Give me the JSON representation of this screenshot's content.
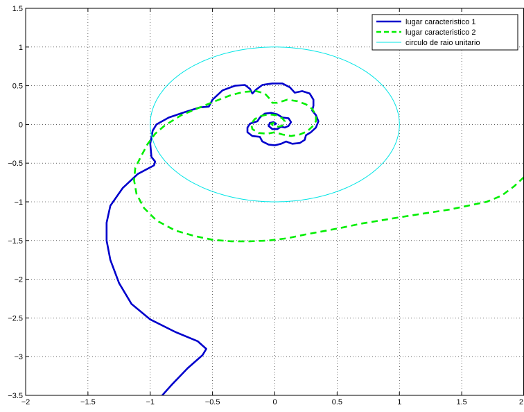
{
  "chart_data": {
    "type": "line",
    "title": "",
    "xlabel": "",
    "ylabel": "",
    "xlim": [
      -2,
      2
    ],
    "ylim": [
      -3.5,
      1.5
    ],
    "xticks": [
      -2,
      -1.5,
      -1,
      -0.5,
      0,
      0.5,
      1,
      1.5,
      2
    ],
    "xtick_labels": [
      "−2",
      "−1.5",
      "−1",
      "−0.5",
      "0",
      "0.5",
      "1",
      "1.5",
      "2"
    ],
    "yticks": [
      1.5,
      1,
      0.5,
      0,
      -0.5,
      -1,
      -1.5,
      -2,
      -2.5,
      -3,
      -3.5
    ],
    "ytick_labels": [
      "1.5",
      "1",
      "0.5",
      "0",
      "−0.5",
      "−1",
      "−1.5",
      "−2",
      "−2.5",
      "−3",
      "−3.5"
    ],
    "grid": true,
    "legend_position": "top-right",
    "series": [
      {
        "name": "lugar caracteristico 1",
        "color": "#0000CC",
        "style": "solid",
        "points": [
          [
            -0.92,
            -3.53
          ],
          [
            -0.82,
            -3.35
          ],
          [
            -0.7,
            -3.15
          ],
          [
            -0.58,
            -2.98
          ],
          [
            -0.55,
            -2.9
          ],
          [
            -0.62,
            -2.8
          ],
          [
            -0.8,
            -2.68
          ],
          [
            -1.0,
            -2.52
          ],
          [
            -1.15,
            -2.32
          ],
          [
            -1.25,
            -2.05
          ],
          [
            -1.32,
            -1.75
          ],
          [
            -1.35,
            -1.5
          ],
          [
            -1.35,
            -1.27
          ],
          [
            -1.32,
            -1.05
          ],
          [
            -1.22,
            -0.82
          ],
          [
            -1.1,
            -0.64
          ],
          [
            -0.97,
            -0.53
          ],
          [
            -0.96,
            -0.48
          ],
          [
            -0.99,
            -0.42
          ],
          [
            -1.0,
            -0.25
          ],
          [
            -0.98,
            -0.08
          ],
          [
            -0.95,
            0.0
          ],
          [
            -0.85,
            0.09
          ],
          [
            -0.72,
            0.16
          ],
          [
            -0.6,
            0.22
          ],
          [
            -0.53,
            0.23
          ],
          [
            -0.5,
            0.32
          ],
          [
            -0.42,
            0.44
          ],
          [
            -0.32,
            0.5
          ],
          [
            -0.24,
            0.51
          ],
          [
            -0.2,
            0.46
          ],
          [
            -0.18,
            0.4
          ],
          [
            -0.15,
            0.45
          ],
          [
            -0.1,
            0.51
          ],
          [
            -0.02,
            0.53
          ],
          [
            0.06,
            0.53
          ],
          [
            0.12,
            0.48
          ],
          [
            0.16,
            0.41
          ],
          [
            0.22,
            0.43
          ],
          [
            0.28,
            0.4
          ],
          [
            0.31,
            0.32
          ],
          [
            0.31,
            0.24
          ],
          [
            0.3,
            0.18
          ],
          [
            0.33,
            0.12
          ],
          [
            0.35,
            0.04
          ],
          [
            0.33,
            -0.04
          ],
          [
            0.29,
            -0.1
          ],
          [
            0.25,
            -0.14
          ],
          [
            0.24,
            -0.2
          ],
          [
            0.2,
            -0.24
          ],
          [
            0.14,
            -0.25
          ],
          [
            0.09,
            -0.22
          ],
          [
            0.05,
            -0.25
          ],
          [
            0.0,
            -0.27
          ],
          [
            -0.05,
            -0.26
          ],
          [
            -0.1,
            -0.22
          ],
          [
            -0.12,
            -0.16
          ],
          [
            -0.18,
            -0.15
          ],
          [
            -0.22,
            -0.1
          ],
          [
            -0.22,
            -0.04
          ],
          [
            -0.2,
            0.01
          ],
          [
            -0.14,
            0.04
          ],
          [
            -0.12,
            0.09
          ],
          [
            -0.08,
            0.14
          ],
          [
            -0.03,
            0.15
          ],
          [
            0.02,
            0.13
          ],
          [
            0.06,
            0.09
          ],
          [
            0.11,
            0.08
          ],
          [
            0.13,
            0.03
          ],
          [
            0.11,
            -0.02
          ],
          [
            0.08,
            -0.04
          ],
          [
            0.05,
            -0.03
          ],
          [
            0.02,
            -0.06
          ],
          [
            -0.02,
            -0.06
          ],
          [
            -0.05,
            -0.02
          ],
          [
            -0.04,
            0.02
          ],
          [
            -0.01,
            0.03
          ],
          [
            0.01,
            0.01
          ],
          [
            0.0,
            0.0
          ]
        ]
      },
      {
        "name": "lugar caracteristico 2",
        "color": "#00EE00",
        "style": "dashed",
        "points": [
          [
            2.0,
            -0.68
          ],
          [
            1.92,
            -0.8
          ],
          [
            1.82,
            -0.92
          ],
          [
            1.7,
            -1.0
          ],
          [
            1.55,
            -1.05
          ],
          [
            1.4,
            -1.1
          ],
          [
            1.2,
            -1.15
          ],
          [
            1.0,
            -1.2
          ],
          [
            0.85,
            -1.24
          ],
          [
            0.7,
            -1.28
          ],
          [
            0.55,
            -1.33
          ],
          [
            0.42,
            -1.37
          ],
          [
            0.25,
            -1.42
          ],
          [
            0.1,
            -1.47
          ],
          [
            -0.05,
            -1.5
          ],
          [
            -0.2,
            -1.51
          ],
          [
            -0.35,
            -1.51
          ],
          [
            -0.5,
            -1.49
          ],
          [
            -0.65,
            -1.44
          ],
          [
            -0.8,
            -1.37
          ],
          [
            -0.95,
            -1.24
          ],
          [
            -1.05,
            -1.08
          ],
          [
            -1.11,
            -0.9
          ],
          [
            -1.13,
            -0.72
          ],
          [
            -1.12,
            -0.56
          ],
          [
            -1.07,
            -0.4
          ],
          [
            -1.02,
            -0.25
          ],
          [
            -0.96,
            -0.12
          ],
          [
            -0.88,
            -0.01
          ],
          [
            -0.75,
            0.12
          ],
          [
            -0.6,
            0.22
          ],
          [
            -0.48,
            0.3
          ],
          [
            -0.35,
            0.38
          ],
          [
            -0.25,
            0.42
          ],
          [
            -0.15,
            0.43
          ],
          [
            -0.08,
            0.4
          ],
          [
            -0.04,
            0.33
          ],
          [
            -0.02,
            0.28
          ],
          [
            0.02,
            0.28
          ],
          [
            0.1,
            0.32
          ],
          [
            0.18,
            0.3
          ],
          [
            0.25,
            0.26
          ],
          [
            0.3,
            0.2
          ],
          [
            0.33,
            0.12
          ],
          [
            0.33,
            0.04
          ],
          [
            0.3,
            -0.03
          ],
          [
            0.26,
            -0.09
          ],
          [
            0.2,
            -0.13
          ],
          [
            0.13,
            -0.15
          ],
          [
            0.06,
            -0.13
          ],
          [
            0.0,
            -0.1
          ],
          [
            -0.06,
            -0.12
          ],
          [
            -0.13,
            -0.11
          ],
          [
            -0.18,
            -0.06
          ],
          [
            -0.19,
            0.01
          ],
          [
            -0.16,
            0.07
          ],
          [
            -0.11,
            0.11
          ],
          [
            -0.05,
            0.13
          ],
          [
            0.01,
            0.12
          ],
          [
            0.06,
            0.08
          ],
          [
            0.08,
            0.04
          ],
          [
            0.07,
            -0.01
          ],
          [
            0.03,
            -0.03
          ],
          [
            -0.01,
            -0.02
          ],
          [
            -0.03,
            0.01
          ],
          [
            -0.01,
            0.02
          ],
          [
            0.0,
            0.0
          ]
        ]
      },
      {
        "name": "circulo de raio unitario",
        "color": "#00E5E5",
        "style": "solid-thin",
        "shape": "circle",
        "center": [
          0,
          0
        ],
        "radius": 1
      }
    ]
  }
}
